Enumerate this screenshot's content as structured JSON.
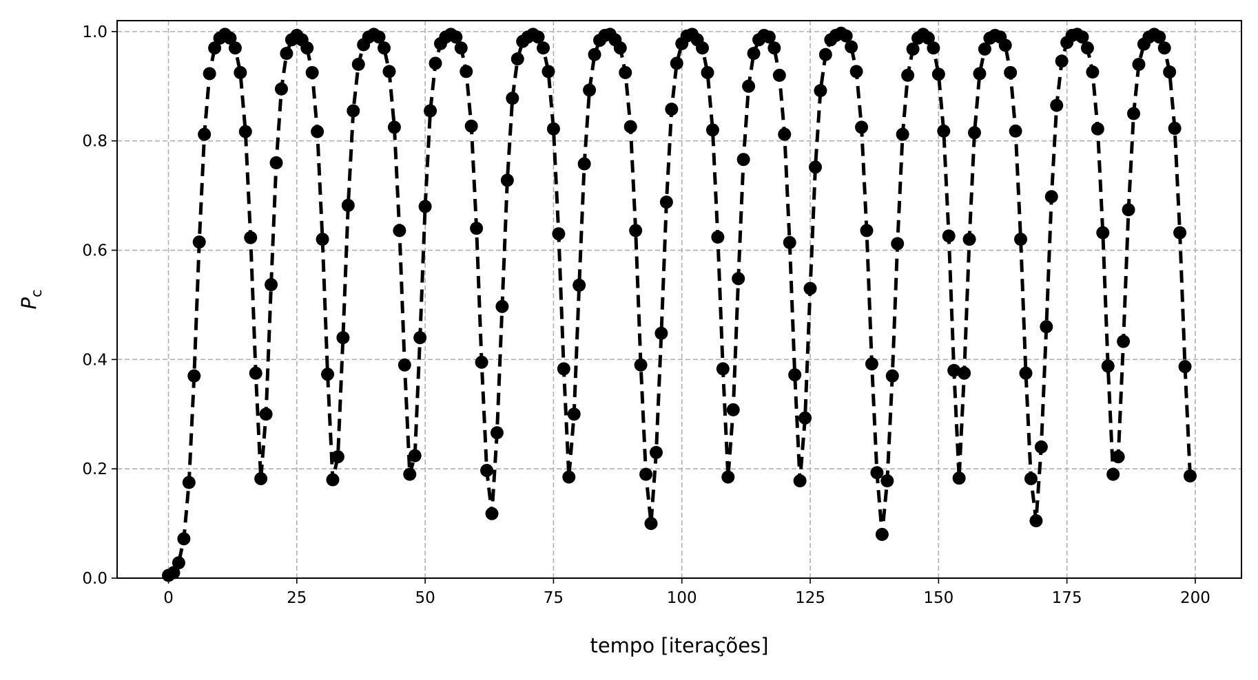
{
  "chart_data": {
    "type": "line",
    "title": "",
    "xlabel": "tempo [iterações]",
    "ylabel_main": "P",
    "ylabel_sub": "c",
    "xlim": [
      -10,
      209
    ],
    "ylim": [
      0,
      1.02
    ],
    "x_ticks": [
      0,
      25,
      50,
      75,
      100,
      125,
      150,
      175,
      200
    ],
    "x_tick_labels": [
      "0",
      "25",
      "50",
      "75",
      "100",
      "125",
      "150",
      "175",
      "200"
    ],
    "y_ticks": [
      0.0,
      0.2,
      0.4,
      0.6,
      0.8,
      1.0
    ],
    "y_tick_labels": [
      "0.0",
      "0.2",
      "0.4",
      "0.6",
      "0.8",
      "1.0"
    ],
    "grid": true,
    "line_style": "dashed",
    "marker": "circle",
    "colors": {
      "series": "#000000",
      "grid": "#b0b0b0",
      "axes": "#000000",
      "background": "#ffffff"
    },
    "series": [
      {
        "x": [
          0,
          1,
          2,
          3,
          4,
          5,
          6,
          7,
          8,
          9,
          10,
          11,
          12,
          13,
          14,
          15,
          16,
          17,
          18,
          19,
          20,
          21,
          22,
          23,
          24,
          25,
          26,
          27,
          28,
          29,
          30,
          31,
          32,
          33,
          34,
          35,
          36,
          37,
          38,
          39,
          40,
          41,
          42,
          43,
          44,
          45,
          46,
          47,
          48,
          49,
          50,
          51,
          52,
          53,
          54,
          55,
          56,
          57,
          58,
          59,
          60,
          61,
          62,
          63,
          64,
          65,
          66,
          67,
          68,
          69,
          70,
          71,
          72,
          73,
          74,
          75,
          76,
          77,
          78,
          79,
          80,
          81,
          82,
          83,
          84,
          85,
          86,
          87,
          88,
          89,
          90,
          91,
          92,
          93,
          94,
          95,
          96,
          97,
          98,
          99,
          100,
          101,
          102,
          103,
          104,
          105,
          106,
          107,
          108,
          109,
          110,
          111,
          112,
          113,
          114,
          115,
          116,
          117,
          118,
          119,
          120,
          121,
          122,
          123,
          124,
          125,
          126,
          127,
          128,
          129,
          130,
          131,
          132,
          133,
          134,
          135,
          136,
          137,
          138,
          139,
          140,
          141,
          142,
          143,
          144,
          145,
          146,
          147,
          148,
          149,
          150,
          151,
          152,
          153,
          154,
          155,
          156,
          157,
          158,
          159,
          160,
          161,
          162,
          163,
          164,
          165,
          166,
          167,
          168,
          169,
          170,
          171,
          172,
          173,
          174,
          175,
          176,
          177,
          178,
          179,
          180,
          181,
          182,
          183,
          184,
          185,
          186,
          187,
          188,
          189,
          190,
          191,
          192,
          193,
          194,
          195,
          196,
          197,
          198,
          199
        ],
        "values": [
          0.005,
          0.01,
          0.028,
          0.072,
          0.175,
          0.37,
          0.615,
          0.812,
          0.923,
          0.97,
          0.988,
          0.995,
          0.988,
          0.97,
          0.925,
          0.817,
          0.623,
          0.375,
          0.182,
          0.3,
          0.537,
          0.76,
          0.895,
          0.96,
          0.985,
          0.993,
          0.985,
          0.97,
          0.925,
          0.817,
          0.62,
          0.373,
          0.18,
          0.222,
          0.44,
          0.682,
          0.855,
          0.94,
          0.976,
          0.99,
          0.995,
          0.99,
          0.97,
          0.927,
          0.825,
          0.636,
          0.39,
          0.19,
          0.224,
          0.44,
          0.68,
          0.855,
          0.942,
          0.978,
          0.99,
          0.995,
          0.99,
          0.97,
          0.927,
          0.827,
          0.64,
          0.395,
          0.197,
          0.118,
          0.266,
          0.497,
          0.728,
          0.878,
          0.95,
          0.982,
          0.99,
          0.995,
          0.99,
          0.97,
          0.927,
          0.822,
          0.63,
          0.383,
          0.185,
          0.3,
          0.536,
          0.758,
          0.893,
          0.958,
          0.984,
          0.993,
          0.995,
          0.985,
          0.97,
          0.925,
          0.826,
          0.636,
          0.39,
          0.19,
          0.1,
          0.23,
          0.448,
          0.688,
          0.858,
          0.942,
          0.978,
          0.992,
          0.995,
          0.985,
          0.97,
          0.925,
          0.82,
          0.624,
          0.383,
          0.185,
          0.308,
          0.548,
          0.766,
          0.9,
          0.96,
          0.985,
          0.993,
          0.99,
          0.97,
          0.92,
          0.812,
          0.614,
          0.372,
          0.178,
          0.293,
          0.53,
          0.752,
          0.892,
          0.958,
          0.985,
          0.993,
          0.997,
          0.992,
          0.972,
          0.927,
          0.825,
          0.636,
          0.392,
          0.193,
          0.08,
          0.178,
          0.37,
          0.612,
          0.812,
          0.92,
          0.968,
          0.988,
          0.995,
          0.988,
          0.97,
          0.922,
          0.818,
          0.626,
          0.38,
          0.183,
          0.375,
          0.62,
          0.815,
          0.923,
          0.968,
          0.988,
          0.993,
          0.99,
          0.975,
          0.925,
          0.818,
          0.62,
          0.375,
          0.182,
          0.105,
          0.24,
          0.46,
          0.698,
          0.865,
          0.946,
          0.98,
          0.993,
          0.995,
          0.99,
          0.97,
          0.926,
          0.822,
          0.632,
          0.388,
          0.19,
          0.222,
          0.433,
          0.674,
          0.85,
          0.94,
          0.977,
          0.99,
          0.995,
          0.99,
          0.97,
          0.926,
          0.823,
          0.632,
          0.387,
          0.187
        ]
      }
    ]
  }
}
